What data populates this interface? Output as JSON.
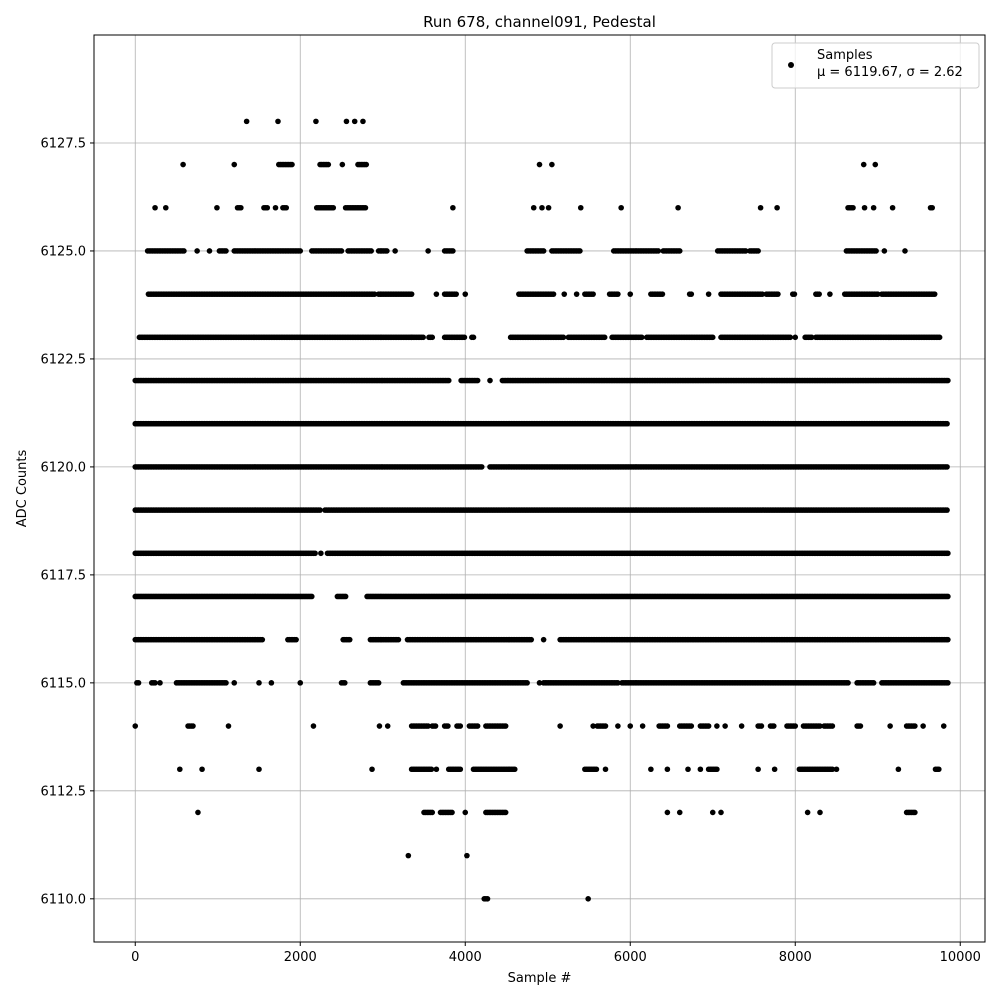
{
  "chart_data": {
    "type": "scatter",
    "title": "Run 678, channel091, Pedestal",
    "xlabel": "Sample #",
    "ylabel": "ADC Counts",
    "xlim": [
      -500,
      10300
    ],
    "ylim": [
      6109.0,
      6130.0
    ],
    "xticks": [
      0,
      2000,
      4000,
      6000,
      8000,
      10000
    ],
    "xtick_labels": [
      "0",
      "2000",
      "4000",
      "6000",
      "8000",
      "10000"
    ],
    "yticks": [
      6110.0,
      6112.5,
      6115.0,
      6117.5,
      6120.0,
      6122.5,
      6125.0,
      6127.5
    ],
    "ytick_labels": [
      "6110.0",
      "6112.5",
      "6115.0",
      "6117.5",
      "6120.0",
      "6122.5",
      "6125.0",
      "6127.5"
    ],
    "grid": true,
    "legend": {
      "position": "top-right",
      "entries": [
        {
          "label": "Samples",
          "sublabel": "μ = 6119.67, σ = 2.62",
          "color": "#000000",
          "marker": "dot"
        }
      ]
    },
    "series": [
      {
        "name": "Samples",
        "color": "#000000",
        "bands": [
          {
            "y": 6128,
            "ranges": [
              [
                1350,
                1350
              ],
              [
                1730,
                1730
              ],
              [
                2190,
                2190
              ],
              [
                2560,
                2560
              ],
              [
                2660,
                2660
              ],
              [
                2760,
                2760
              ]
            ]
          },
          {
            "y": 6127,
            "ranges": [
              [
                580,
                580
              ],
              [
                1200,
                1200
              ],
              [
                1740,
                1900
              ],
              [
                2240,
                2340
              ],
              [
                2510,
                2510
              ],
              [
                2700,
                2800
              ],
              [
                4900,
                4900
              ],
              [
                5050,
                5050
              ],
              [
                8830,
                8830
              ],
              [
                8970,
                8970
              ]
            ]
          },
          {
            "y": 6126,
            "ranges": [
              [
                240,
                240
              ],
              [
                370,
                370
              ],
              [
                990,
                990
              ],
              [
                1240,
                1290
              ],
              [
                1560,
                1610
              ],
              [
                1700,
                1700
              ],
              [
                1790,
                1840
              ],
              [
                2200,
                2400
              ],
              [
                2550,
                2790
              ],
              [
                3850,
                3850
              ],
              [
                4830,
                4830
              ],
              [
                4930,
                4930
              ],
              [
                5010,
                5010
              ],
              [
                5400,
                5400
              ],
              [
                5890,
                5890
              ],
              [
                6580,
                6580
              ],
              [
                7580,
                7580
              ],
              [
                7780,
                7780
              ],
              [
                8640,
                8700
              ],
              [
                8840,
                8840
              ],
              [
                8950,
                8950
              ],
              [
                9180,
                9180
              ],
              [
                9640,
                9660
              ]
            ]
          },
          {
            "y": 6125,
            "ranges": [
              [
                150,
                600
              ],
              [
                750,
                750
              ],
              [
                900,
                900
              ],
              [
                1020,
                1100
              ],
              [
                1200,
                2000
              ],
              [
                2140,
                2500
              ],
              [
                2580,
                2870
              ],
              [
                2950,
                3050
              ],
              [
                3150,
                3150
              ],
              [
                3550,
                3550
              ],
              [
                3750,
                3850
              ],
              [
                4750,
                4950
              ],
              [
                5050,
                5400
              ],
              [
                5800,
                6350
              ],
              [
                6400,
                6600
              ],
              [
                7060,
                7400
              ],
              [
                7450,
                7550
              ],
              [
                8620,
                8980
              ],
              [
                9080,
                9080
              ],
              [
                9330,
                9330
              ]
            ]
          },
          {
            "y": 6124,
            "ranges": [
              [
                160,
                2900
              ],
              [
                2950,
                3350
              ],
              [
                3650,
                3650
              ],
              [
                3750,
                3900
              ],
              [
                4000,
                4000
              ],
              [
                4650,
                5080
              ],
              [
                5200,
                5200
              ],
              [
                5350,
                5350
              ],
              [
                5450,
                5550
              ],
              [
                5750,
                5850
              ],
              [
                6000,
                6000
              ],
              [
                6250,
                6400
              ],
              [
                6720,
                6750
              ],
              [
                6950,
                6950
              ],
              [
                7100,
                7600
              ],
              [
                7650,
                7800
              ],
              [
                7970,
                8000
              ],
              [
                8250,
                8300
              ],
              [
                8420,
                8420
              ],
              [
                8600,
                9000
              ],
              [
                9050,
                9700
              ]
            ]
          },
          {
            "y": 6123,
            "ranges": [
              [
                50,
                3350
              ],
              [
                3350,
                3500
              ],
              [
                3560,
                3600
              ],
              [
                3750,
                4000
              ],
              [
                4080,
                4100
              ],
              [
                4550,
                5200
              ],
              [
                5250,
                5700
              ],
              [
                5780,
                6150
              ],
              [
                6200,
                7000
              ],
              [
                7100,
                7950
              ],
              [
                8000,
                8000
              ],
              [
                8120,
                8200
              ],
              [
                8250,
                9750
              ]
            ]
          },
          {
            "y": 6122,
            "ranges": [
              [
                0,
                3800
              ],
              [
                3950,
                4150
              ],
              [
                4300,
                4300
              ],
              [
                4450,
                9850
              ]
            ]
          },
          {
            "y": 6121,
            "ranges": [
              [
                0,
                9850
              ]
            ]
          },
          {
            "y": 6120,
            "ranges": [
              [
                0,
                4200
              ],
              [
                4300,
                9850
              ]
            ]
          },
          {
            "y": 6119,
            "ranges": [
              [
                0,
                2250
              ],
              [
                2300,
                9850
              ]
            ]
          },
          {
            "y": 6118,
            "ranges": [
              [
                0,
                2180
              ],
              [
                2250,
                2250
              ],
              [
                2330,
                9850
              ]
            ]
          },
          {
            "y": 6117,
            "ranges": [
              [
                0,
                2150
              ],
              [
                2450,
                2550
              ],
              [
                2810,
                9850
              ]
            ]
          },
          {
            "y": 6116,
            "ranges": [
              [
                0,
                1550
              ],
              [
                1850,
                1950
              ],
              [
                2520,
                2600
              ],
              [
                2850,
                3200
              ],
              [
                3300,
                4800
              ],
              [
                4950,
                4950
              ],
              [
                5150,
                9850
              ]
            ]
          },
          {
            "y": 6115,
            "ranges": [
              [
                20,
                50
              ],
              [
                200,
                250
              ],
              [
                300,
                300
              ],
              [
                500,
                1100
              ],
              [
                1200,
                1200
              ],
              [
                1500,
                1500
              ],
              [
                1650,
                1650
              ],
              [
                2000,
                2000
              ],
              [
                2500,
                2550
              ],
              [
                2850,
                2950
              ],
              [
                3250,
                4750
              ],
              [
                4900,
                4900
              ],
              [
                4950,
                5850
              ],
              [
                5900,
                8650
              ],
              [
                8750,
                8950
              ],
              [
                9050,
                9850
              ]
            ]
          },
          {
            "y": 6114,
            "ranges": [
              [
                0,
                0
              ],
              [
                640,
                700
              ],
              [
                1130,
                1130
              ],
              [
                2160,
                2160
              ],
              [
                2960,
                2960
              ],
              [
                3060,
                3060
              ],
              [
                3350,
                3550
              ],
              [
                3600,
                3650
              ],
              [
                3750,
                3800
              ],
              [
                3900,
                3950
              ],
              [
                4050,
                4150
              ],
              [
                4250,
                4500
              ],
              [
                5150,
                5150
              ],
              [
                5550,
                5550
              ],
              [
                5600,
                5700
              ],
              [
                5850,
                5850
              ],
              [
                6000,
                6000
              ],
              [
                6150,
                6150
              ],
              [
                6350,
                6450
              ],
              [
                6600,
                6750
              ],
              [
                6850,
                6950
              ],
              [
                7050,
                7050
              ],
              [
                7150,
                7150
              ],
              [
                7350,
                7350
              ],
              [
                7550,
                7600
              ],
              [
                7700,
                7750
              ],
              [
                7900,
                8000
              ],
              [
                8100,
                8300
              ],
              [
                8350,
                8450
              ],
              [
                8750,
                8800
              ],
              [
                9150,
                9150
              ],
              [
                9350,
                9450
              ],
              [
                9550,
                9550
              ],
              [
                9800,
                9800
              ]
            ]
          },
          {
            "y": 6113,
            "ranges": [
              [
                540,
                540
              ],
              [
                810,
                810
              ],
              [
                1500,
                1500
              ],
              [
                2870,
                2870
              ],
              [
                3350,
                3600
              ],
              [
                3650,
                3650
              ],
              [
                3800,
                3950
              ],
              [
                4100,
                4600
              ],
              [
                5450,
                5600
              ],
              [
                5700,
                5700
              ],
              [
                6250,
                6250
              ],
              [
                6450,
                6450
              ],
              [
                6700,
                6700
              ],
              [
                6850,
                6850
              ],
              [
                6950,
                7050
              ],
              [
                7550,
                7550
              ],
              [
                7750,
                7750
              ],
              [
                8050,
                8450
              ],
              [
                8500,
                8500
              ],
              [
                9250,
                9250
              ],
              [
                9700,
                9750
              ]
            ]
          },
          {
            "y": 6112,
            "ranges": [
              [
                760,
                760
              ],
              [
                3500,
                3600
              ],
              [
                3700,
                3850
              ],
              [
                4000,
                4000
              ],
              [
                4250,
                4500
              ],
              [
                6450,
                6450
              ],
              [
                6600,
                6600
              ],
              [
                7000,
                7000
              ],
              [
                7100,
                7100
              ],
              [
                8150,
                8150
              ],
              [
                8300,
                8300
              ],
              [
                9350,
                9450
              ]
            ]
          },
          {
            "y": 6111,
            "ranges": [
              [
                3310,
                3310
              ],
              [
                4020,
                4020
              ]
            ]
          },
          {
            "y": 6110,
            "ranges": [
              [
                4230,
                4280
              ],
              [
                5490,
                5490
              ]
            ]
          }
        ]
      }
    ]
  }
}
